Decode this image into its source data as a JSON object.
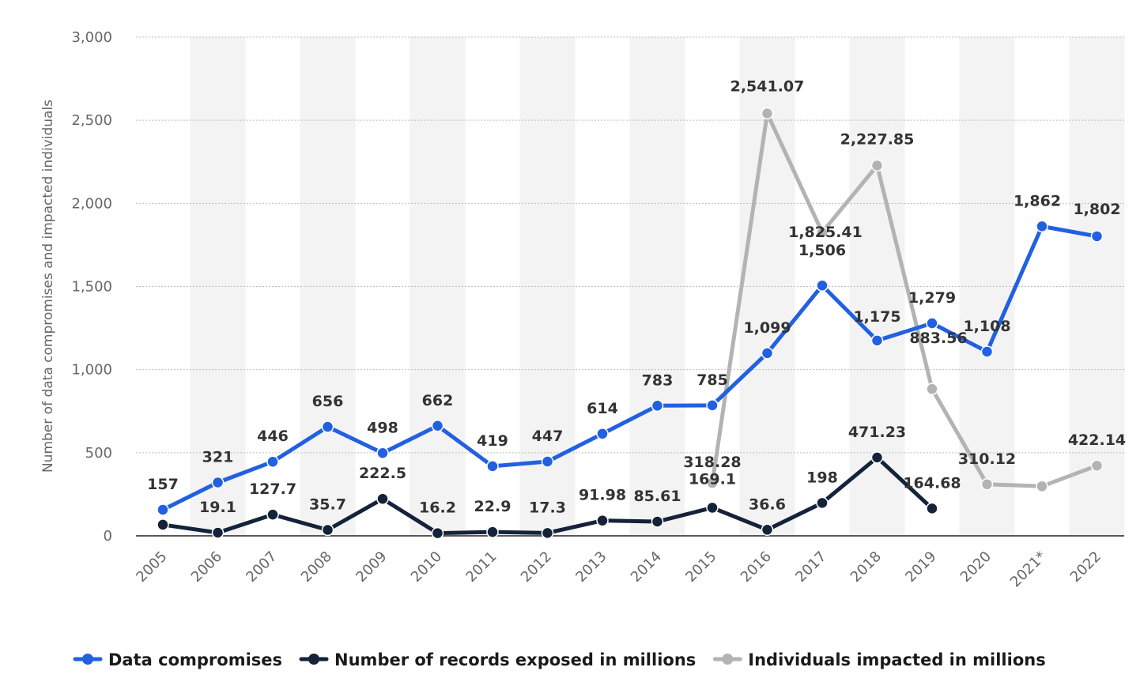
{
  "chart_data": {
    "type": "line",
    "categories": [
      "2005",
      "2006",
      "2007",
      "2008",
      "2009",
      "2010",
      "2011",
      "2012",
      "2013",
      "2014",
      "2015",
      "2016",
      "2017",
      "2018",
      "2019",
      "2020",
      "2021*",
      "2022"
    ],
    "ylabel": "Number of data compromises and impacted individuals",
    "xlabel": "",
    "ylim": [
      0,
      3000
    ],
    "yticks": [
      0,
      500,
      1000,
      1500,
      2000,
      2500,
      3000
    ],
    "ytick_labels": [
      "0",
      "500",
      "1,000",
      "1,500",
      "2,000",
      "2,500",
      "3,000"
    ],
    "grid": true,
    "legend_position": "bottom",
    "series": [
      {
        "name": "Data compromises",
        "color": "#2160e0",
        "values": [
          157,
          321,
          446,
          656,
          498,
          662,
          419,
          447,
          614,
          783,
          785,
          1099,
          1506,
          1175,
          1279,
          1108,
          1862,
          1802
        ],
        "labels": [
          "157",
          "321",
          "446",
          "656",
          "498",
          "662",
          "419",
          "447",
          "614",
          "783",
          "785",
          "1,099",
          "1,506",
          "1,175",
          "1,279",
          "1,108",
          "1,862",
          "1,802"
        ]
      },
      {
        "name": "Number of records exposed in millions",
        "color": "#14223a",
        "values": [
          66.9,
          19.1,
          127.7,
          35.7,
          222.5,
          16.2,
          22.9,
          17.3,
          91.98,
          85.61,
          169.1,
          36.6,
          198,
          471.23,
          164.68,
          null,
          null,
          null
        ],
        "labels": [
          null,
          "19.1",
          "127.7",
          "35.7",
          "222.5",
          "16.2",
          "22.9",
          "17.3",
          "91.98",
          "85.61",
          "169.1",
          "36.6",
          "198",
          "471.23",
          "164.68",
          null,
          null,
          null
        ]
      },
      {
        "name": "Individuals impacted in millions",
        "color": "#b3b3b3",
        "values": [
          null,
          null,
          null,
          null,
          null,
          null,
          null,
          null,
          null,
          null,
          318.28,
          2541.07,
          1825.41,
          2227.85,
          883.56,
          310.12,
          298.2,
          422.14
        ],
        "labels": [
          null,
          null,
          null,
          null,
          null,
          null,
          null,
          null,
          null,
          null,
          "318.28",
          "2,541.07",
          "1,825.41",
          "2,227.85",
          "883.56",
          "310.12",
          null,
          "422.14"
        ]
      }
    ]
  }
}
